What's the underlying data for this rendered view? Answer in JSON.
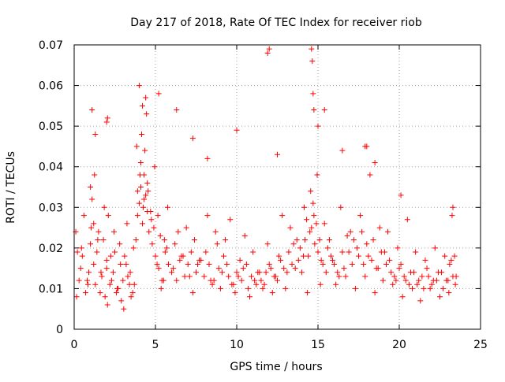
{
  "chart_data": {
    "type": "scatter",
    "title": "Day 217 of 2018, Rate Of TEC Index for receiver riob",
    "xlabel": "GPS time / hours",
    "ylabel": "ROTI / TECUs",
    "xlim": [
      0,
      25
    ],
    "ylim": [
      0,
      0.07
    ],
    "grid": true,
    "marker": "+",
    "point_color": "#ff0000",
    "x_ticks": [
      0,
      5,
      10,
      15,
      20,
      25
    ],
    "x_tick_labels": [
      "0",
      "5",
      "10",
      "15",
      "20",
      "25"
    ],
    "y_ticks": [
      0,
      0.01,
      0.02,
      0.03,
      0.04,
      0.05,
      0.06,
      0.07
    ],
    "y_tick_labels": [
      "0",
      "0.01",
      "0.02",
      "0.03",
      "0.04",
      "0.05",
      "0.06",
      "0.07"
    ],
    "series": [
      {
        "name": "ROTI",
        "x": [
          0.1,
          0.3,
          0.5,
          0.7,
          0.9,
          1.0,
          1.1,
          1.2,
          1.3,
          1.5,
          1.7,
          1.9,
          2.0,
          2.1,
          2.3,
          2.5,
          2.7,
          2.9,
          3.0,
          3.2,
          3.4,
          3.6,
          3.8,
          3.9,
          4.0,
          4.1,
          4.2,
          4.3,
          4.4,
          4.5,
          4.6,
          4.8,
          5.0,
          5.2,
          5.4,
          5.6,
          5.8,
          6.0,
          6.2,
          6.5,
          6.8,
          7.0,
          7.2,
          7.5,
          7.8,
          8.0,
          8.3,
          8.6,
          8.9,
          9.2,
          9.5,
          9.8,
          10.0,
          10.3,
          10.6,
          10.9,
          11.2,
          11.5,
          11.8,
          12.0,
          12.3,
          12.6,
          12.9,
          13.2,
          13.5,
          13.8,
          14.0,
          14.2,
          14.4,
          14.6,
          14.8,
          15.0,
          15.2,
          15.5,
          15.8,
          16.0,
          16.3,
          16.6,
          16.9,
          17.2,
          17.5,
          17.8,
          18.0,
          18.3,
          18.6,
          18.9,
          19.2,
          19.5,
          19.8,
          20.0,
          20.3,
          20.6,
          20.9,
          21.2,
          21.5,
          21.8,
          22.0,
          22.3,
          22.6,
          22.9,
          23.1,
          23.3,
          23.4,
          0.2,
          0.4,
          0.6,
          0.8,
          1.0,
          1.2,
          1.4,
          1.6,
          1.8,
          2.0,
          2.2,
          2.4,
          2.6,
          2.8,
          3.1,
          3.3,
          3.5,
          3.7,
          3.9,
          4.1,
          4.3,
          4.5,
          4.7,
          4.9,
          5.1,
          5.3,
          5.5,
          5.7,
          6.1,
          6.4,
          6.7,
          7.1,
          7.4,
          7.7,
          8.1,
          8.4,
          8.8,
          9.1,
          9.4,
          9.7,
          10.1,
          10.4,
          10.7,
          11.1,
          11.4,
          11.7,
          12.1,
          12.4,
          12.7,
          13.1,
          13.4,
          13.7,
          14.1,
          14.3,
          14.5,
          14.7,
          14.9,
          15.1,
          15.3,
          15.6,
          15.9,
          16.2,
          16.5,
          16.8,
          17.1,
          17.4,
          17.7,
          18.1,
          18.4,
          18.7,
          19.1,
          19.4,
          19.7,
          20.1,
          20.4,
          20.7,
          21.1,
          21.4,
          21.7,
          22.1,
          22.4,
          22.7,
          23.0,
          23.2,
          23.5,
          0.15,
          0.45,
          0.85,
          1.05,
          1.25,
          1.45,
          1.65,
          1.85,
          2.05,
          2.25,
          2.45,
          2.65,
          2.85,
          3.05,
          3.25,
          3.45,
          3.65,
          3.85,
          4.05,
          4.15,
          4.25,
          4.35,
          4.55,
          4.75,
          4.95,
          5.15,
          5.35,
          5.55,
          5.75,
          6.3,
          6.6,
          6.9,
          7.3,
          7.6,
          8.2,
          8.5,
          8.7,
          9.0,
          9.3,
          9.6,
          9.9,
          10.2,
          10.5,
          10.8,
          11.0,
          11.3,
          11.6,
          11.9,
          12.2,
          12.5,
          12.8,
          13.0,
          13.3,
          13.6,
          13.9,
          14.15,
          14.35,
          14.55,
          14.75,
          14.95,
          15.15,
          15.4,
          15.7,
          16.1,
          16.4,
          16.7,
          17.0,
          17.3,
          17.6,
          17.9,
          18.2,
          18.5,
          18.8,
          19.0,
          19.3,
          19.6,
          19.9,
          20.2,
          20.5,
          20.8,
          21.0,
          21.3,
          21.6,
          21.9,
          22.2,
          22.5,
          22.8,
          23.05,
          23.25,
          23.45,
          1.1,
          1.3,
          2.0,
          2.05,
          4.0,
          4.2,
          4.4,
          4.45,
          5.2,
          6.3,
          7.3,
          8.2,
          10.0,
          11.9,
          12.0,
          12.5,
          14.6,
          14.65,
          14.7,
          14.75,
          15.0,
          15.4,
          16.5,
          17.9,
          18.0,
          18.5,
          20.1,
          23.3
        ],
        "y": [
          0.024,
          0.012,
          0.018,
          0.009,
          0.014,
          0.021,
          0.032,
          0.016,
          0.011,
          0.024,
          0.013,
          0.008,
          0.015,
          0.028,
          0.012,
          0.019,
          0.01,
          0.007,
          0.012,
          0.016,
          0.011,
          0.009,
          0.022,
          0.028,
          0.031,
          0.035,
          0.026,
          0.038,
          0.033,
          0.029,
          0.024,
          0.021,
          0.018,
          0.015,
          0.012,
          0.019,
          0.016,
          0.014,
          0.021,
          0.017,
          0.013,
          0.016,
          0.019,
          0.014,
          0.017,
          0.013,
          0.016,
          0.012,
          0.015,
          0.018,
          0.013,
          0.011,
          0.014,
          0.012,
          0.016,
          0.013,
          0.011,
          0.012,
          0.014,
          0.016,
          0.013,
          0.018,
          0.015,
          0.019,
          0.021,
          0.017,
          0.014,
          0.022,
          0.018,
          0.025,
          0.021,
          0.019,
          0.017,
          0.014,
          0.018,
          0.016,
          0.013,
          0.015,
          0.019,
          0.022,
          0.018,
          0.016,
          0.021,
          0.017,
          0.015,
          0.019,
          0.016,
          0.014,
          0.012,
          0.015,
          0.013,
          0.011,
          0.014,
          0.012,
          0.01,
          0.013,
          0.011,
          0.012,
          0.014,
          0.012,
          0.016,
          0.013,
          0.018,
          0.019,
          0.015,
          0.028,
          0.012,
          0.035,
          0.026,
          0.019,
          0.009,
          0.022,
          0.017,
          0.011,
          0.014,
          0.009,
          0.021,
          0.018,
          0.013,
          0.008,
          0.011,
          0.034,
          0.041,
          0.032,
          0.036,
          0.029,
          0.025,
          0.016,
          0.023,
          0.012,
          0.02,
          0.015,
          0.024,
          0.018,
          0.013,
          0.022,
          0.017,
          0.019,
          0.012,
          0.021,
          0.014,
          0.016,
          0.011,
          0.013,
          0.015,
          0.01,
          0.012,
          0.014,
          0.011,
          0.015,
          0.013,
          0.017,
          0.014,
          0.016,
          0.022,
          0.018,
          0.027,
          0.024,
          0.031,
          0.026,
          0.022,
          0.016,
          0.02,
          0.017,
          0.014,
          0.019,
          0.023,
          0.016,
          0.02,
          0.024,
          0.018,
          0.022,
          0.015,
          0.019,
          0.017,
          0.013,
          0.016,
          0.012,
          0.014,
          0.011,
          0.013,
          0.015,
          0.012,
          0.014,
          0.01,
          0.012,
          0.017,
          0.013,
          0.008,
          0.02,
          0.011,
          0.025,
          0.038,
          0.022,
          0.014,
          0.03,
          0.006,
          0.018,
          0.024,
          0.01,
          0.016,
          0.005,
          0.026,
          0.014,
          0.02,
          0.045,
          0.038,
          0.048,
          0.03,
          0.044,
          0.034,
          0.027,
          0.04,
          0.028,
          0.01,
          0.022,
          0.03,
          0.012,
          0.018,
          0.025,
          0.009,
          0.016,
          0.028,
          0.011,
          0.024,
          0.01,
          0.022,
          0.027,
          0.009,
          0.017,
          0.023,
          0.008,
          0.019,
          0.014,
          0.01,
          0.021,
          0.009,
          0.012,
          0.028,
          0.01,
          0.025,
          0.015,
          0.02,
          0.03,
          0.009,
          0.034,
          0.028,
          0.038,
          0.011,
          0.026,
          0.022,
          0.011,
          0.03,
          0.013,
          0.024,
          0.01,
          0.028,
          0.013,
          0.038,
          0.009,
          0.025,
          0.012,
          0.024,
          0.011,
          0.02,
          0.008,
          0.027,
          0.01,
          0.019,
          0.007,
          0.017,
          0.01,
          0.02,
          0.008,
          0.018,
          0.009,
          0.028,
          0.011,
          0.054,
          0.048,
          0.051,
          0.052,
          0.06,
          0.055,
          0.057,
          0.053,
          0.058,
          0.054,
          0.047,
          0.042,
          0.049,
          0.068,
          0.069,
          0.043,
          0.069,
          0.066,
          0.058,
          0.054,
          0.05,
          0.054,
          0.044,
          0.045,
          0.045,
          0.041,
          0.033,
          0.03
        ]
      }
    ]
  }
}
